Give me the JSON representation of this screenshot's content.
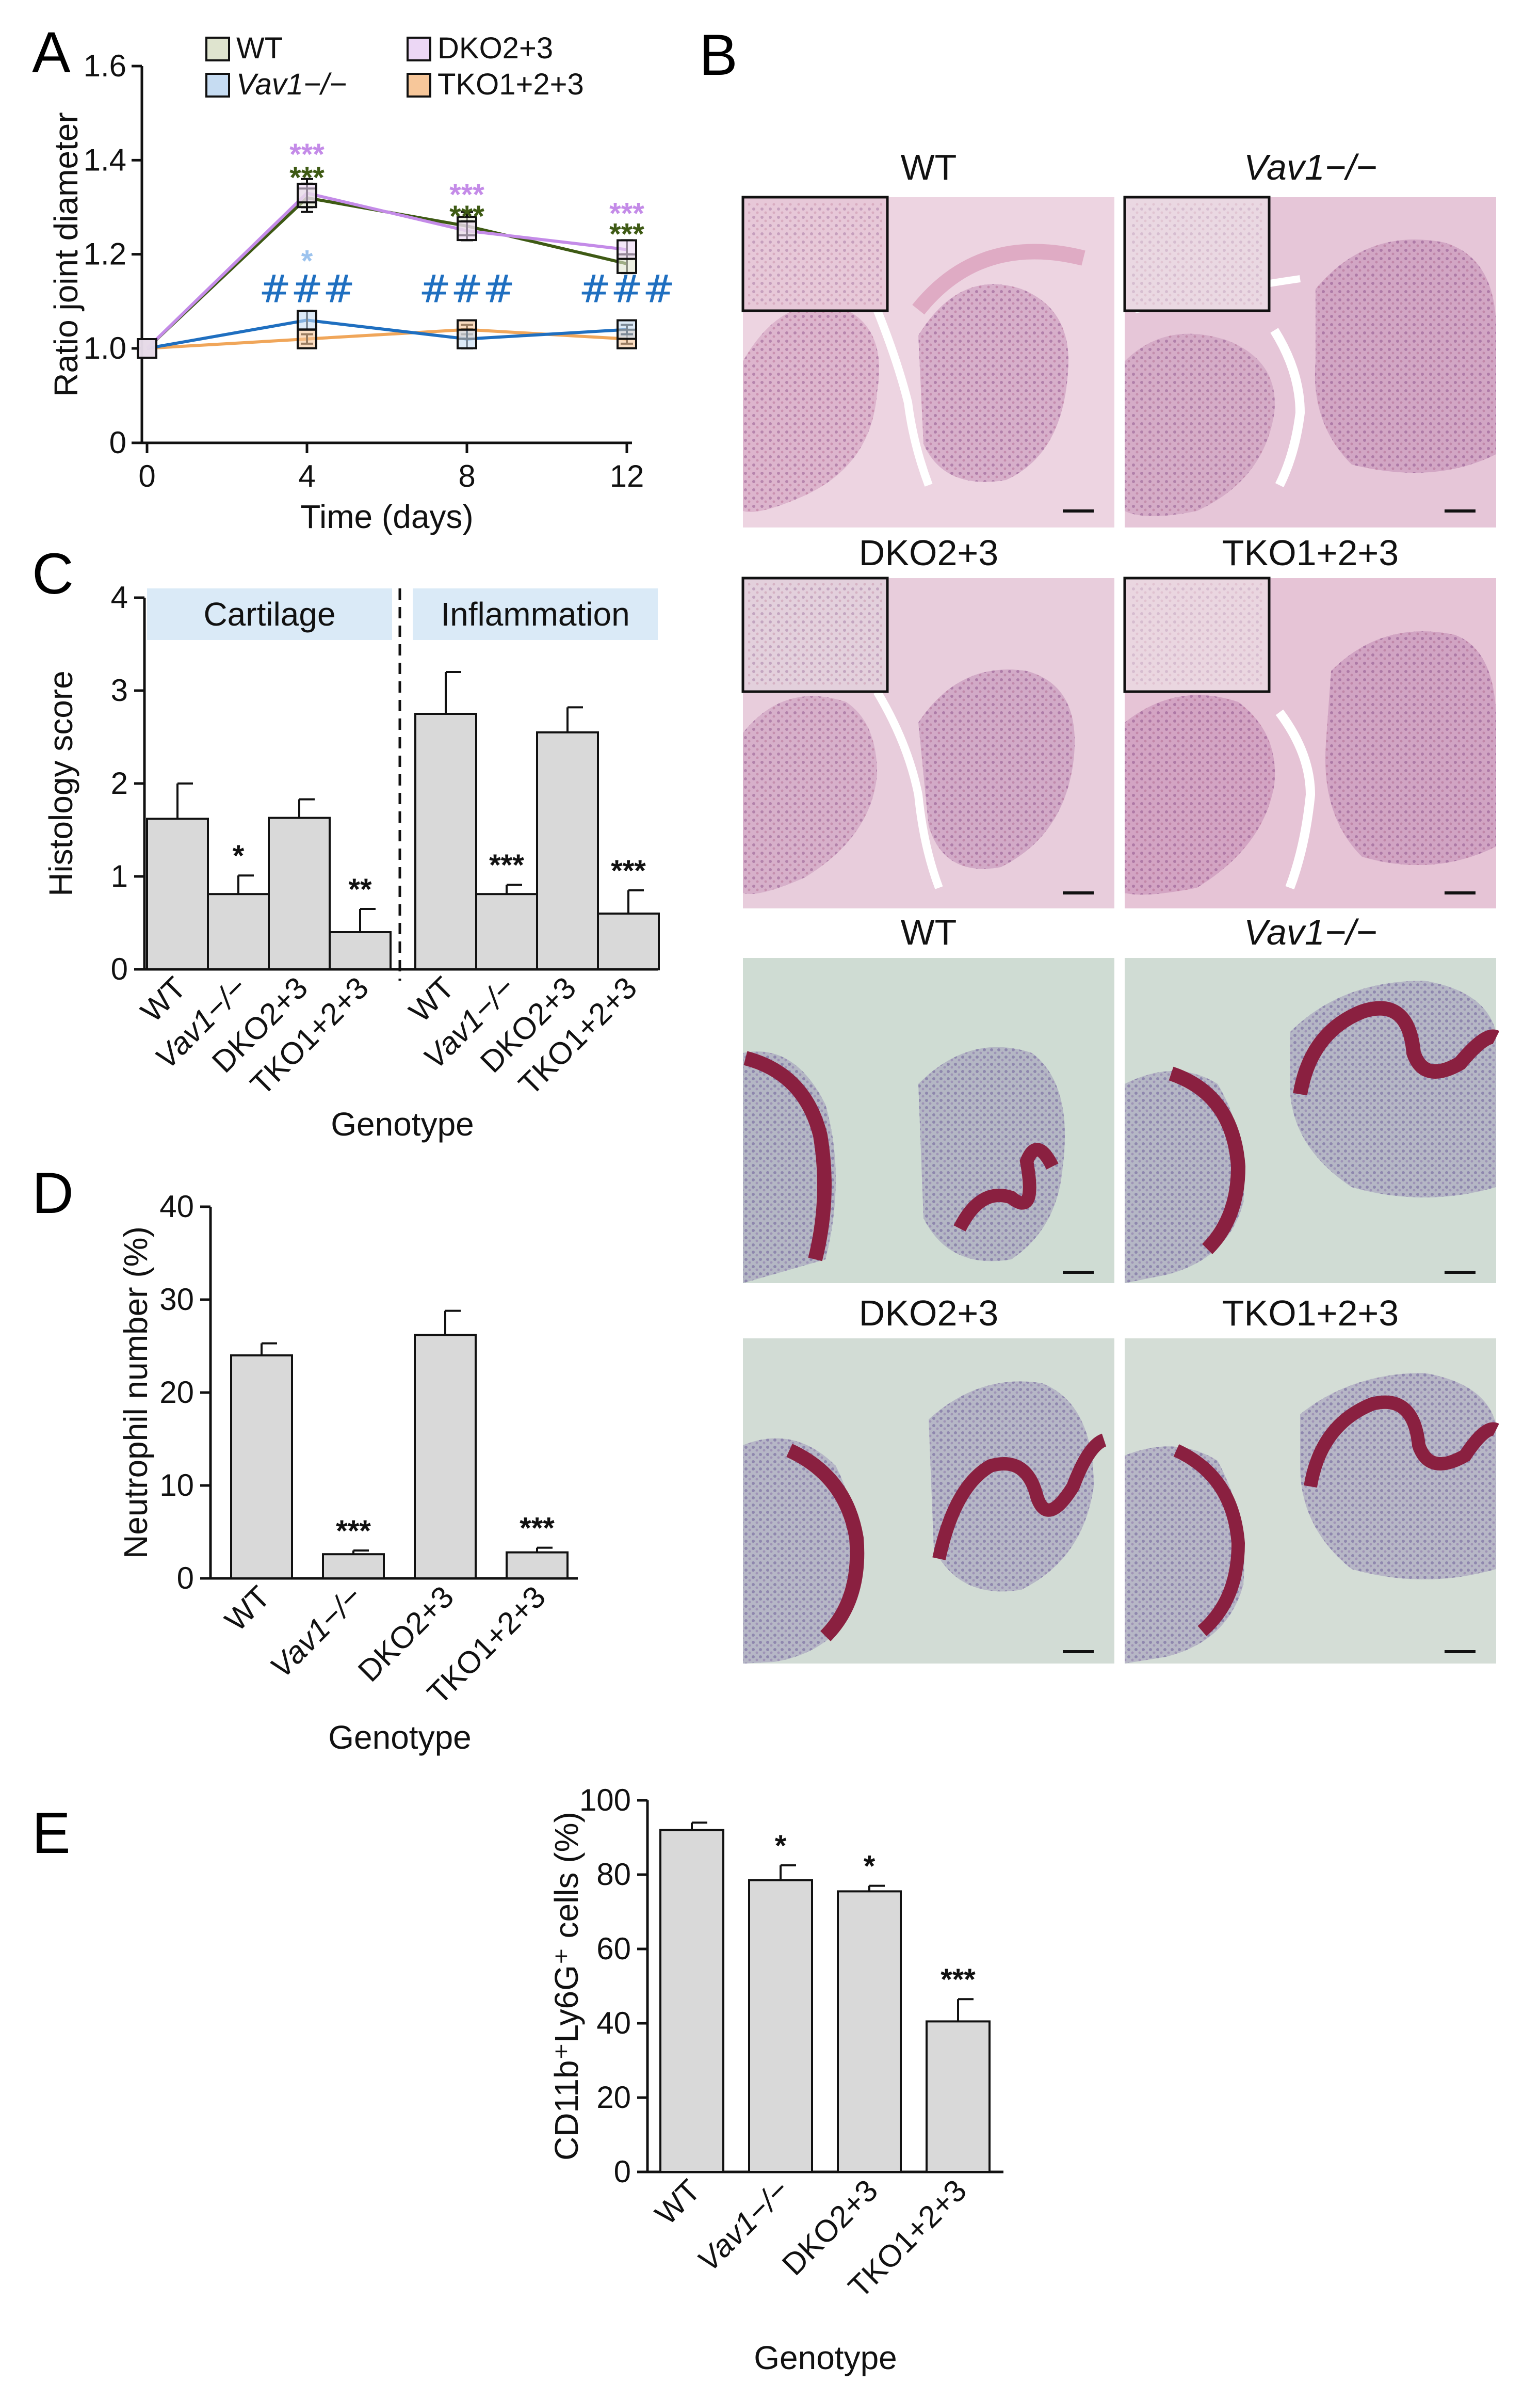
{
  "panel_letters": {
    "a": "A",
    "b": "B",
    "c": "C",
    "d": "D",
    "e": "E"
  },
  "colors": {
    "wt": "#3e5a14",
    "vav1": "#1f6fc0",
    "dko": "#c48be8",
    "tko": "#f0a65a",
    "vav1_star_light": "#9cc3ee",
    "bar_fill": "#d9d9d9",
    "he_stain": "#d98aa8",
    "safranin_stain": "#8a2040",
    "fast_green_bg": "#bcd0c2",
    "category_box": "#daeaf7"
  },
  "histology": {
    "he_titles": [
      "WT",
      "Vav1−/−",
      "DKO2+3",
      "TKO1+2+3"
    ],
    "safranin_titles": [
      "WT",
      "Vav1−/−",
      "DKO2+3",
      "TKO1+2+3"
    ]
  },
  "chart_data": [
    {
      "id": "A",
      "type": "line",
      "xlabel": "Time (days)",
      "ylabel": "Ratio joint diameter",
      "xlim": [
        0,
        12
      ],
      "ylim": [
        0,
        1.6
      ],
      "x": [
        0,
        4,
        8,
        12
      ],
      "xticks": [
        "0",
        "4",
        "8",
        "12"
      ],
      "yticks": [
        "0",
        "1.0",
        "1.2",
        "1.4",
        "1.6"
      ],
      "legend": [
        "WT",
        "Vav1−/−",
        "DKO2+3",
        "TKO1+2+3"
      ],
      "series": [
        {
          "name": "WT",
          "values": [
            1.0,
            1.32,
            1.26,
            1.18
          ],
          "errors": [
            0,
            0.03,
            0.03,
            0.02
          ]
        },
        {
          "name": "Vav1−/−",
          "values": [
            1.0,
            1.06,
            1.02,
            1.04
          ],
          "errors": [
            0,
            0.02,
            0.02,
            0.01
          ]
        },
        {
          "name": "DKO2+3",
          "values": [
            1.0,
            1.33,
            1.25,
            1.21
          ],
          "errors": [
            0,
            0.03,
            0.02,
            0.02
          ]
        },
        {
          "name": "TKO1+2+3",
          "values": [
            1.0,
            1.02,
            1.04,
            1.02
          ],
          "errors": [
            0,
            0.01,
            0.01,
            0.01
          ]
        }
      ],
      "annotations": {
        "stars": "***",
        "single_star": "*",
        "hash": "###"
      }
    },
    {
      "id": "C",
      "type": "bar",
      "xlabel": "Genotype",
      "ylabel": "Histology score",
      "ylim": [
        0,
        4
      ],
      "yticks": [
        "0",
        "1",
        "2",
        "3",
        "4"
      ],
      "groups": [
        "Cartilage",
        "Inflammation"
      ],
      "categories": [
        "WT",
        "Vav1−/−",
        "DKO2+3",
        "TKO1+2+3"
      ],
      "series": [
        {
          "name": "Cartilage",
          "values": [
            1.62,
            0.81,
            1.63,
            0.4
          ],
          "errors": [
            0.38,
            0.2,
            0.2,
            0.25
          ],
          "labels": [
            "",
            "*",
            "",
            "**"
          ]
        },
        {
          "name": "Inflammation",
          "values": [
            2.75,
            0.81,
            2.55,
            0.6
          ],
          "errors": [
            0.45,
            0.1,
            0.27,
            0.25
          ],
          "labels": [
            "",
            "***",
            "",
            "***"
          ]
        }
      ]
    },
    {
      "id": "D",
      "type": "bar",
      "xlabel": "Genotype",
      "ylabel": "Neutrophil number (%)",
      "ylim": [
        0,
        40
      ],
      "yticks": [
        "0",
        "10",
        "20",
        "30",
        "40"
      ],
      "categories": [
        "WT",
        "Vav1−/−",
        "DKO2+3",
        "TKO1+2+3"
      ],
      "values": [
        24.0,
        2.6,
        26.2,
        2.8
      ],
      "errors": [
        1.3,
        0.4,
        2.6,
        0.5
      ],
      "labels": [
        "",
        "***",
        "",
        "***"
      ]
    },
    {
      "id": "E",
      "type": "bar",
      "xlabel": "Genotype",
      "ylabel": "CD11b⁺Ly6G⁺ cells (%)",
      "ylim": [
        0,
        100
      ],
      "yticks": [
        "0",
        "20",
        "40",
        "60",
        "80",
        "100"
      ],
      "categories": [
        "WT",
        "Vav1−/−",
        "DKO2+3",
        "TKO1+2+3"
      ],
      "values": [
        92,
        78.5,
        75.5,
        40.5
      ],
      "errors": [
        2,
        4,
        1.5,
        6
      ],
      "labels": [
        "",
        "*",
        "*",
        "***"
      ]
    }
  ]
}
